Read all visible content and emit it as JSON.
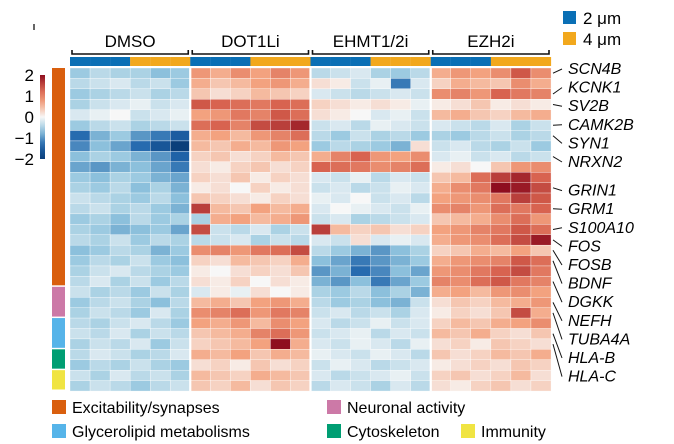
{
  "chart_data": {
    "type": "heatmap",
    "title": "",
    "colorscale": {
      "min": -2,
      "max": 2,
      "ticks": [
        2,
        1,
        0,
        -1,
        -2
      ],
      "tick_labels": [
        "2",
        "1",
        "0",
        "−1",
        "−2"
      ],
      "low_color": "#0b3f7a",
      "mid_color": "#f7f7f7",
      "high_color": "#8e0e1f"
    },
    "treatments": [
      "DMSO",
      "DOT1Li",
      "EHMT1/2i",
      "EZH2i"
    ],
    "size_legend": [
      {
        "label": "2 μm",
        "color": "#0a6fb5"
      },
      {
        "label": "4 μm",
        "color": "#f2a81d"
      }
    ],
    "column_sizes": [
      "2 μm",
      "2 μm",
      "2 μm",
      "4 μm",
      "4 μm",
      "4 μm"
    ],
    "categories": [
      {
        "label": "Excitability/synapses",
        "color": "#d95f0e",
        "rows": 21
      },
      {
        "label": "Neuronal activity",
        "color": "#cc79a7",
        "rows": 3
      },
      {
        "label": "Glycerolipid metabolisms",
        "color": "#56b4e9",
        "rows": 3
      },
      {
        "label": "Cytoskeleton",
        "color": "#009e73",
        "rows": 2
      },
      {
        "label": "Immunity",
        "color": "#f0e442",
        "rows": 2
      }
    ],
    "gene_labels": [
      {
        "gene": "SCN4B",
        "row": 0
      },
      {
        "gene": "KCNK1",
        "row": 2
      },
      {
        "gene": "SV2B",
        "row": 3
      },
      {
        "gene": "CAMK2B",
        "row": 5
      },
      {
        "gene": "SYN1",
        "row": 6
      },
      {
        "gene": "NRXN2",
        "row": 8
      },
      {
        "gene": "GRIN1",
        "row": 11
      },
      {
        "gene": "GRM1",
        "row": 13
      },
      {
        "gene": "S100A10",
        "row": 15
      },
      {
        "gene": "FOS",
        "row": 16
      },
      {
        "gene": "FOSB",
        "row": 17
      },
      {
        "gene": "BDNF",
        "row": 18
      },
      {
        "gene": "DGKK",
        "row": 20
      },
      {
        "gene": "NEFH",
        "row": 22
      },
      {
        "gene": "TUBA4A",
        "row": 23
      },
      {
        "gene": "HLA-B",
        "row": 25
      },
      {
        "gene": "HLA-C",
        "row": 26
      }
    ],
    "values": [
      [
        -0.6,
        -0.4,
        -0.5,
        -0.5,
        -0.7,
        -0.6,
        0.8,
        0.6,
        0.9,
        0.7,
        1.0,
        0.8,
        -0.4,
        -0.3,
        -0.2,
        -0.5,
        -0.6,
        -0.4,
        0.6,
        0.8,
        0.7,
        0.9,
        1.4,
        0.9
      ],
      [
        -0.4,
        -0.3,
        -0.2,
        -0.4,
        -0.3,
        -0.6,
        0.6,
        0.4,
        0.5,
        0.7,
        0.8,
        0.6,
        0.2,
        0.1,
        -0.3,
        -0.1,
        -1.2,
        -0.2,
        0.3,
        0.6,
        0.5,
        0.4,
        0.9,
        0.6
      ],
      [
        -0.6,
        -0.5,
        -0.4,
        -0.3,
        -0.5,
        -0.4,
        0.4,
        0.2,
        0.3,
        0.5,
        0.4,
        0.3,
        -0.2,
        -0.3,
        -0.4,
        -0.3,
        -0.2,
        -0.3,
        0.9,
        1.0,
        0.8,
        1.3,
        1.1,
        1.0
      ],
      [
        -0.5,
        -0.3,
        -0.2,
        -0.1,
        -0.3,
        -0.2,
        1.4,
        1.3,
        1.2,
        1.1,
        1.3,
        1.2,
        0.3,
        0.2,
        0.1,
        0.2,
        0.1,
        -0.1,
        0.1,
        0.2,
        0.4,
        0.1,
        0.2,
        0.1
      ],
      [
        -0.2,
        -0.1,
        0.0,
        -0.3,
        -0.2,
        -0.1,
        0.7,
        0.8,
        1.1,
        1.0,
        1.4,
        1.2,
        0.2,
        0.1,
        0.0,
        -0.2,
        -0.1,
        -0.3,
        0.5,
        0.6,
        0.4,
        0.3,
        0.5,
        0.6
      ],
      [
        -0.6,
        -0.4,
        -0.3,
        -0.5,
        -0.4,
        -0.3,
        1.2,
        1.3,
        1.0,
        1.5,
        1.6,
        1.8,
        -0.3,
        -0.2,
        -0.4,
        -0.1,
        -0.2,
        -0.3,
        -0.2,
        -0.3,
        -0.4,
        -0.2,
        -0.5,
        -0.3
      ],
      [
        -1.3,
        -0.8,
        -0.6,
        -1.0,
        -1.2,
        -1.5,
        0.6,
        0.7,
        0.5,
        0.8,
        1.0,
        1.2,
        -0.4,
        -0.6,
        -0.3,
        -0.5,
        -0.4,
        -0.6,
        -0.5,
        -0.6,
        -0.4,
        -0.3,
        -0.5,
        -0.4
      ],
      [
        -1.1,
        -0.7,
        -0.9,
        -1.3,
        -1.6,
        -2.0,
        0.5,
        0.4,
        0.6,
        0.5,
        0.8,
        0.7,
        -0.6,
        -0.4,
        -0.5,
        -0.6,
        -0.8,
        0.2,
        -0.3,
        -0.2,
        -0.4,
        -0.5,
        -0.3,
        -0.6
      ],
      [
        -0.7,
        -0.5,
        -0.6,
        -0.8,
        -1.0,
        -1.4,
        0.3,
        0.4,
        0.2,
        0.3,
        0.5,
        0.4,
        0.6,
        1.0,
        1.3,
        0.8,
        0.7,
        0.9,
        -0.2,
        -0.1,
        -0.3,
        -0.2,
        -0.4,
        -0.3
      ],
      [
        -0.9,
        -1.0,
        -0.8,
        -0.7,
        -0.9,
        -1.2,
        0.2,
        0.1,
        0.3,
        0.4,
        0.2,
        0.3,
        1.3,
        1.2,
        1.1,
        0.9,
        1.0,
        1.2,
        0.1,
        0.2,
        0.0,
        0.4,
        0.8,
        0.9
      ],
      [
        -0.6,
        -0.7,
        -0.5,
        -0.6,
        -0.8,
        -0.9,
        0.3,
        0.2,
        0.4,
        0.1,
        0.3,
        0.2,
        -0.2,
        -0.3,
        -0.1,
        -0.4,
        -0.2,
        -0.3,
        0.4,
        0.5,
        1.2,
        1.6,
        1.8,
        1.3
      ],
      [
        -0.5,
        -0.6,
        -0.4,
        -0.7,
        -0.5,
        -0.8,
        0.1,
        0.2,
        0.0,
        0.3,
        0.1,
        0.2,
        -0.3,
        -0.2,
        -0.4,
        -0.3,
        -0.1,
        -0.2,
        0.6,
        0.9,
        1.1,
        2.0,
        1.9,
        1.5
      ],
      [
        -0.3,
        -0.4,
        -0.5,
        -0.6,
        -0.4,
        -0.7,
        0.4,
        0.3,
        0.2,
        0.1,
        0.3,
        0.2,
        -0.1,
        -0.2,
        0.0,
        -0.3,
        -0.2,
        -0.4,
        0.7,
        0.8,
        0.9,
        1.1,
        1.6,
        1.4
      ],
      [
        -0.4,
        -0.3,
        -0.5,
        -0.4,
        -0.6,
        -0.8,
        1.6,
        0.5,
        0.4,
        0.7,
        0.5,
        0.6,
        -0.2,
        0.0,
        -0.1,
        -0.2,
        -0.3,
        -0.1,
        0.9,
        1.0,
        0.8,
        1.2,
        1.1,
        1.3
      ],
      [
        -0.6,
        -0.5,
        -0.7,
        -0.4,
        -0.6,
        -0.5,
        -0.5,
        0.6,
        0.7,
        0.5,
        0.6,
        0.8,
        -0.3,
        -0.2,
        -0.5,
        -0.4,
        -0.3,
        -0.2,
        0.4,
        0.5,
        0.6,
        0.9,
        1.2,
        0.8
      ],
      [
        -0.5,
        -0.6,
        -0.8,
        -0.7,
        -0.6,
        -0.9,
        1.5,
        -0.3,
        -0.4,
        -0.2,
        -0.5,
        -0.3,
        1.6,
        0.5,
        0.3,
        0.4,
        0.2,
        0.3,
        0.7,
        0.8,
        1.0,
        1.1,
        1.4,
        1.2
      ],
      [
        -0.4,
        -0.5,
        -0.3,
        -0.6,
        -0.4,
        -0.5,
        -0.4,
        -0.3,
        -0.2,
        -0.5,
        -0.3,
        -0.4,
        -0.2,
        -0.3,
        0.2,
        -0.2,
        -0.1,
        -0.2,
        0.6,
        0.8,
        0.9,
        1.2,
        1.5,
        1.9
      ],
      [
        -0.7,
        -0.6,
        -0.4,
        -0.5,
        -0.8,
        -0.6,
        0.9,
        1.0,
        0.8,
        1.1,
        1.2,
        1.5,
        -0.4,
        -0.6,
        -0.8,
        -1.0,
        -0.7,
        -0.5,
        0.3,
        0.4,
        0.6,
        0.5,
        0.7,
        0.4
      ],
      [
        -0.6,
        -0.4,
        -0.5,
        -0.3,
        -0.6,
        -0.7,
        0.3,
        0.2,
        0.5,
        0.4,
        0.3,
        0.6,
        -0.7,
        -0.9,
        -1.2,
        -1.0,
        -0.8,
        -0.6,
        0.6,
        0.8,
        0.9,
        1.0,
        1.4,
        1.2
      ],
      [
        -0.5,
        -0.3,
        -0.2,
        -0.4,
        -0.5,
        -0.6,
        0.1,
        0.0,
        0.2,
        0.3,
        0.2,
        0.4,
        -1.0,
        -0.8,
        -1.3,
        -1.1,
        -0.7,
        -0.9,
        0.8,
        0.9,
        1.1,
        1.3,
        1.5,
        1.1
      ],
      [
        -0.4,
        -0.2,
        -0.5,
        -0.3,
        -0.6,
        -0.4,
        0.2,
        0.1,
        0.3,
        0.0,
        0.2,
        0.1,
        -0.8,
        -1.0,
        -0.7,
        -1.2,
        -0.9,
        -0.6,
        1.0,
        0.9,
        1.2,
        1.4,
        1.1,
        1.0
      ],
      [
        -0.3,
        -0.5,
        -0.4,
        -0.6,
        -0.3,
        -0.5,
        -0.2,
        0.1,
        -0.1,
        0.2,
        0.0,
        0.1,
        -0.5,
        -0.6,
        -0.4,
        -0.7,
        -0.5,
        -0.8,
        0.6,
        0.7,
        0.5,
        0.8,
        0.9,
        0.7
      ],
      [
        -0.6,
        -0.4,
        -0.3,
        -0.5,
        -0.7,
        -0.4,
        0.5,
        0.6,
        0.4,
        0.7,
        0.8,
        0.6,
        -0.4,
        -0.6,
        -0.5,
        -0.7,
        -0.8,
        -0.3,
        0.2,
        0.4,
        0.3,
        0.5,
        0.6,
        0.8
      ],
      [
        -0.5,
        -0.3,
        -0.4,
        -0.6,
        -0.2,
        -0.5,
        0.9,
        1.0,
        1.2,
        0.8,
        1.1,
        1.0,
        -0.3,
        -0.2,
        -0.4,
        -0.3,
        -0.5,
        -0.2,
        0.1,
        0.3,
        0.2,
        0.4,
        1.5,
        0.6
      ],
      [
        -0.4,
        -0.5,
        -0.3,
        -0.2,
        -0.4,
        -0.6,
        0.7,
        0.6,
        0.8,
        0.5,
        0.9,
        0.7,
        -0.2,
        -0.4,
        -0.3,
        -0.1,
        -0.3,
        -0.2,
        0.3,
        0.5,
        0.4,
        0.6,
        0.7,
        0.9
      ],
      [
        -0.3,
        -0.4,
        -0.2,
        -0.5,
        -0.3,
        -0.4,
        0.4,
        0.5,
        0.6,
        1.0,
        1.2,
        0.8,
        -0.3,
        -0.2,
        -0.1,
        -0.4,
        -0.2,
        -0.3,
        0.5,
        0.4,
        0.6,
        0.3,
        0.2,
        0.4
      ],
      [
        -0.5,
        -0.3,
        -0.4,
        -0.2,
        -0.6,
        -0.3,
        0.3,
        0.4,
        0.5,
        0.7,
        2.0,
        0.6,
        -0.2,
        -0.3,
        -0.1,
        -0.2,
        -0.4,
        -0.1,
        0.2,
        0.3,
        0.1,
        0.4,
        0.3,
        0.2
      ],
      [
        -0.4,
        -0.2,
        -0.3,
        -0.5,
        -0.4,
        -0.2,
        0.6,
        0.5,
        0.7,
        0.4,
        0.6,
        0.5,
        -0.1,
        -0.2,
        -0.3,
        -0.1,
        -0.2,
        -0.4,
        0.4,
        0.2,
        0.3,
        0.5,
        0.4,
        0.6
      ],
      [
        -0.6,
        -0.4,
        -0.5,
        -0.3,
        -0.5,
        -0.6,
        0.2,
        0.3,
        0.1,
        0.4,
        0.2,
        0.3,
        -0.3,
        -0.1,
        -0.2,
        -0.4,
        -0.3,
        -0.2,
        0.1,
        0.2,
        0.3,
        0.2,
        0.4,
        0.3
      ],
      [
        -0.3,
        -0.5,
        -0.2,
        -0.4,
        -0.3,
        -0.5,
        0.5,
        0.4,
        0.3,
        0.6,
        0.5,
        0.4,
        -0.2,
        -0.4,
        -0.3,
        -0.2,
        -0.1,
        -0.3,
        0.3,
        0.4,
        0.2,
        0.3,
        0.5,
        0.2
      ],
      [
        -0.5,
        -0.3,
        -0.4,
        -0.6,
        -0.4,
        -0.3,
        0.4,
        0.3,
        0.5,
        0.2,
        0.4,
        0.3,
        -0.4,
        -0.2,
        -0.3,
        -0.5,
        -0.2,
        -0.4,
        0.2,
        0.1,
        0.3,
        0.4,
        0.2,
        0.3
      ]
    ]
  }
}
